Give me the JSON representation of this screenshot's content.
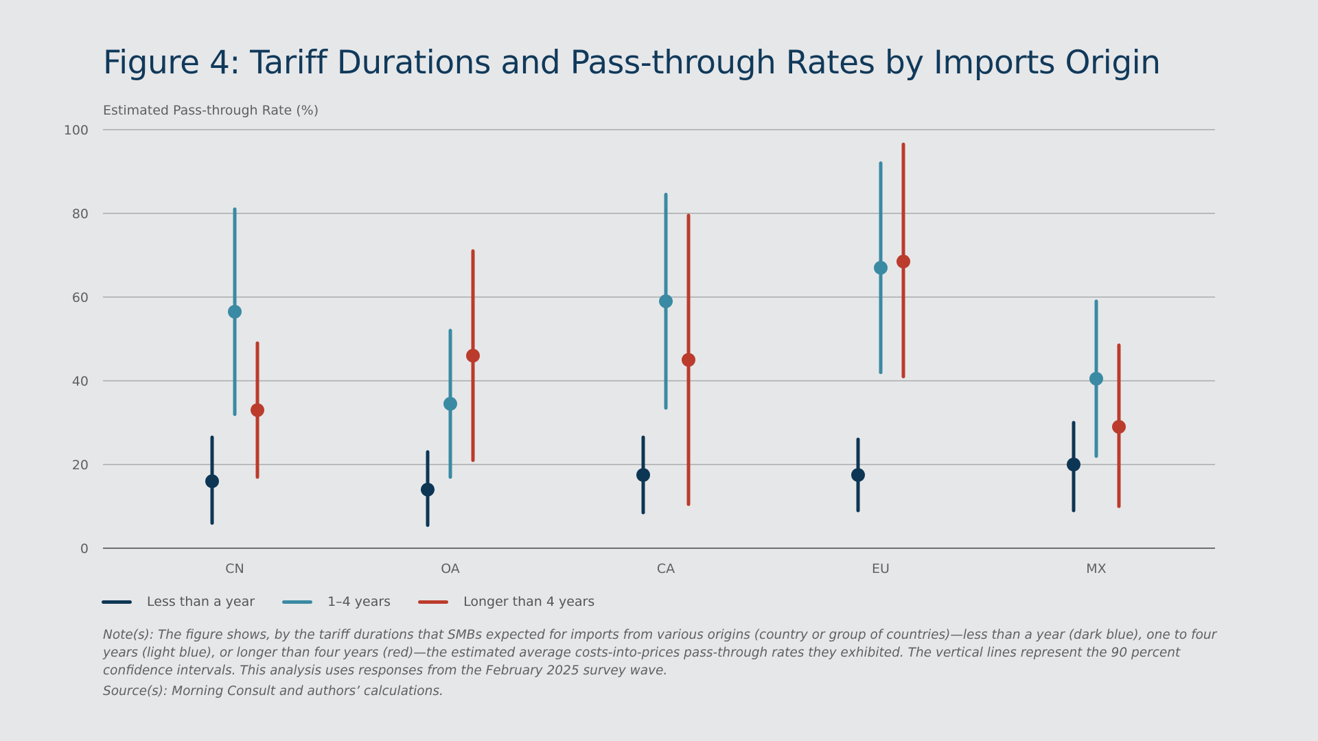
{
  "title": "Figure 4: Tariff Durations and Pass-through Rates by Imports Origin",
  "note": "Note(s): The figure shows, by the tariff durations that SMBs expected for imports from various origins (country or group of countries)—less than a year (dark blue), one to four years (light blue), or longer than four years (red)—the estimated average costs-into-prices pass-through rates they exhibited. The vertical lines represent the 90 percent confidence intervals. This analysis uses responses from the February 2025 survey wave.",
  "source": "Source(s): Morning Consult and authors’ calculations.",
  "legend": [
    {
      "label": "Less than a year",
      "color": "#0d3654"
    },
    {
      "label": "1–4 years",
      "color": "#3a8aa3"
    },
    {
      "label": "Longer than 4 years",
      "color": "#bb3b2c"
    }
  ],
  "chart_data": {
    "type": "scatter",
    "subtype": "point-with-error-bars",
    "title": "Figure 4: Tariff Durations and Pass-through Rates by Imports Origin",
    "xlabel": "",
    "ylabel": "Estimated Pass-through Rate (%)",
    "ylim": [
      0,
      100
    ],
    "yticks": [
      0,
      20,
      40,
      60,
      80,
      100
    ],
    "grid": true,
    "legend_position": "bottom-left",
    "categories": [
      "CN",
      "OA",
      "CA",
      "EU",
      "MX"
    ],
    "series": [
      {
        "name": "Less than a year",
        "color": "#0d3654",
        "values": [
          16,
          14,
          17.5,
          17.5,
          20
        ],
        "lower": [
          6,
          5.5,
          8.5,
          9,
          9
        ],
        "upper": [
          26.5,
          23,
          26.5,
          26,
          30
        ]
      },
      {
        "name": "1–4 years",
        "color": "#3a8aa3",
        "values": [
          56.5,
          34.5,
          59,
          67,
          40.5
        ],
        "lower": [
          32,
          17,
          33.5,
          42,
          22
        ],
        "upper": [
          81,
          52,
          84.5,
          92,
          59
        ]
      },
      {
        "name": "Longer than 4 years",
        "color": "#bb3b2c",
        "values": [
          33,
          46,
          45,
          68.5,
          29
        ],
        "lower": [
          17,
          21,
          10.5,
          41,
          10
        ],
        "upper": [
          49,
          71,
          79.5,
          96.5,
          48.5
        ]
      }
    ]
  }
}
